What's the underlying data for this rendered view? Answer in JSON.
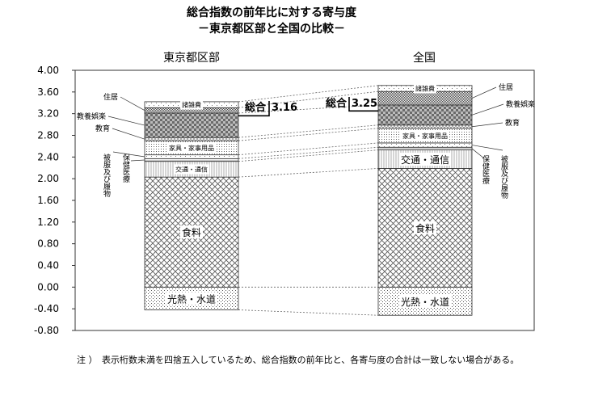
{
  "chart_data": {
    "type": "bar",
    "title": "総合指数の前年比に対する寄与度",
    "subtitle": "－東京都区部と全国の比較－",
    "ylim": [
      -0.8,
      4.0
    ],
    "yticks": [
      "4.00",
      "3.60",
      "3.20",
      "2.80",
      "2.40",
      "2.00",
      "1.60",
      "1.20",
      "0.80",
      "0.40",
      "0.00",
      "-0.40",
      "-0.80"
    ],
    "grid": false,
    "categories": [
      "東京都区部",
      "全国"
    ],
    "series": [
      {
        "name": "光熱・水道",
        "label": "光熱・水道",
        "values": [
          -0.42,
          -0.52
        ]
      },
      {
        "name": "食料",
        "label": "食料",
        "values": [
          2.03,
          2.19
        ]
      },
      {
        "name": "交通・通信",
        "label": "交通・通信",
        "values": [
          0.29,
          0.34
        ]
      },
      {
        "name": "保健医療",
        "label": "",
        "values": [
          0.05,
          0.05
        ]
      },
      {
        "name": "被服及び履物",
        "label": "",
        "values": [
          0.07,
          0.08
        ]
      },
      {
        "name": "家具・家事用品",
        "label": "家具・家事用品",
        "values": [
          0.26,
          0.27
        ]
      },
      {
        "name": "教育",
        "label": "",
        "values": [
          0.06,
          0.06
        ]
      },
      {
        "name": "教養娯楽",
        "label": "",
        "values": [
          0.45,
          0.37
        ]
      },
      {
        "name": "住居",
        "label": "",
        "values": [
          0.1,
          0.25
        ]
      },
      {
        "name": "諸雑費",
        "label": "諸雑費",
        "values": [
          0.11,
          0.11
        ]
      }
    ],
    "totals": [
      {
        "label": "総合",
        "value": "3.16"
      },
      {
        "label": "総合",
        "value": "3.25"
      }
    ],
    "side_labels_left": [
      "住居",
      "教養娯楽",
      "教育",
      "被服及び履物",
      "保健医療"
    ],
    "side_labels_right": [
      "住居",
      "教養娯楽",
      "教育",
      "被服及び履物",
      "保健医療"
    ],
    "note": "注 ）　表示桁数未満を四捨五入しているため、総合指数の前年比と、各寄与度の合計は一致しない場合がある。"
  }
}
